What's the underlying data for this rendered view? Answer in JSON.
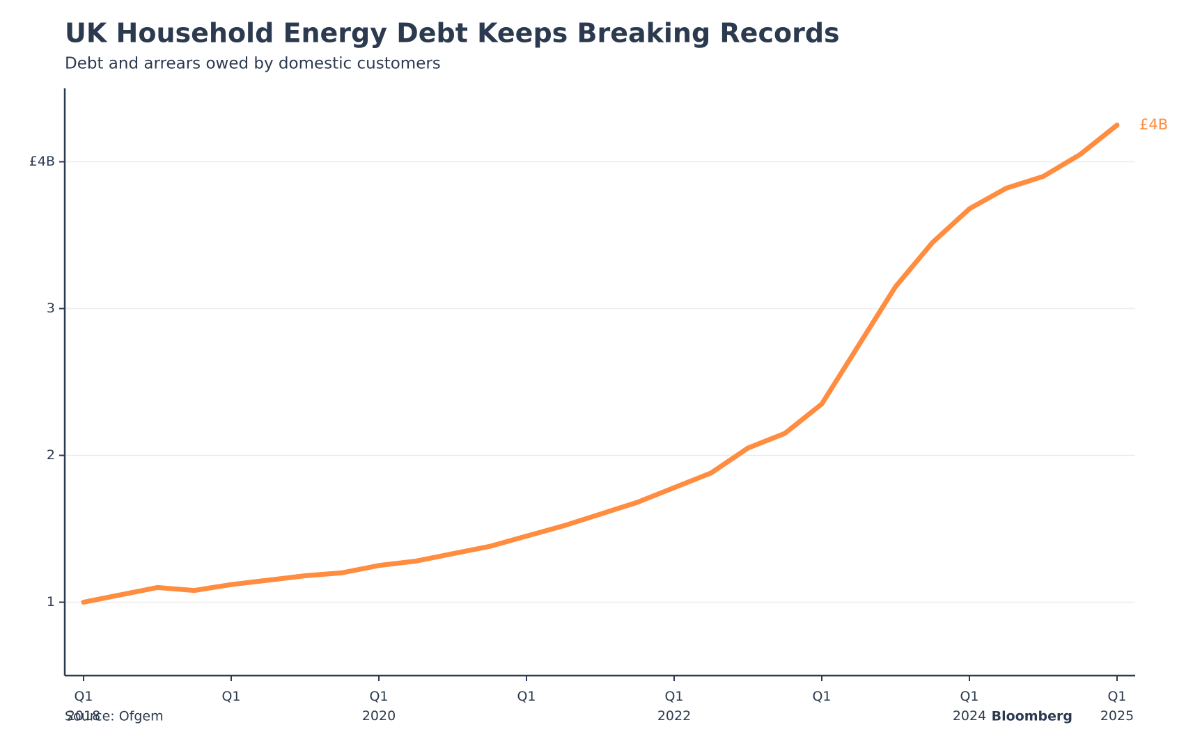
{
  "chart_data": {
    "type": "line",
    "title": "UK Household Energy Debt Keeps Breaking Records",
    "subtitle": "Debt and arrears owed by domestic customers",
    "source": "Source: Ofgem",
    "brand": "Bloomberg",
    "categories": [
      "Q1 2018",
      null,
      null,
      null,
      "Q1",
      null,
      null,
      null,
      "Q1 2020",
      null,
      null,
      null,
      "Q1",
      null,
      null,
      null,
      "Q1 2022",
      null,
      null,
      null,
      "Q1",
      null,
      null,
      null,
      "Q1 2024",
      null,
      null,
      null,
      "Q1 2025"
    ],
    "series": [
      {
        "name": "Debt and arrears",
        "color": "#ff8c3f",
        "values": [
          1.0,
          1.05,
          1.1,
          1.08,
          1.12,
          1.15,
          1.18,
          1.2,
          1.25,
          1.28,
          1.33,
          1.38,
          1.45,
          1.52,
          1.6,
          1.68,
          1.78,
          1.88,
          2.05,
          2.15,
          2.35,
          2.75,
          3.15,
          3.45,
          3.68,
          3.82,
          3.9,
          4.05,
          4.25
        ],
        "value_labels": [
          null,
          null,
          null,
          null,
          null,
          null,
          null,
          null,
          null,
          null,
          null,
          null,
          null,
          null,
          null,
          null,
          null,
          null,
          null,
          null,
          null,
          null,
          null,
          null,
          null,
          null,
          null,
          null,
          "£4B"
        ]
      }
    ],
    "ylim": [
      0.5,
      4.5
    ],
    "yticks": [
      1,
      2,
      3,
      {
        "value": 4,
        "label": "£4B"
      }
    ],
    "grid": true
  }
}
